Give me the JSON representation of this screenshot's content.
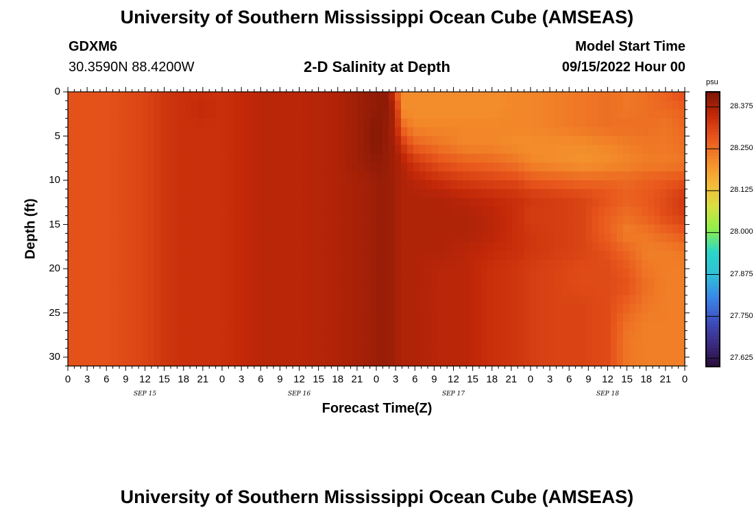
{
  "header": {
    "title": "University of Southern Mississippi Ocean Cube (AMSEAS)",
    "station_id": "GDXM6",
    "station_coords": "30.3590N  88.4200W",
    "subtitle": "2-D Salinity at Depth",
    "model_start_label": "Model Start Time",
    "model_start_value": "09/15/2022 Hour 00"
  },
  "footer": {
    "repeat_title": "University of Southern Mississippi Ocean Cube (AMSEAS)"
  },
  "colors": {
    "scale": [
      "#2a0b3a",
      "#3b2b80",
      "#3e4fc0",
      "#3a86e8",
      "#2fc0d8",
      "#2ad6c8",
      "#8ef04a",
      "#d8e040",
      "#f5b838",
      "#f38a2a",
      "#e8561c",
      "#c32808",
      "#7a1606"
    ]
  },
  "chart_data": {
    "type": "heatmap",
    "title": "2-D Salinity at Depth",
    "xlabel": "Forecast Time(Z)",
    "ylabel": "Depth (ft)",
    "x_unit": "hours from 09/15/2022 00Z",
    "xlim": [
      0,
      96
    ],
    "ylim": [
      0,
      31
    ],
    "y_inverted": true,
    "x_tick_labels": [
      "0",
      "3",
      "6",
      "9",
      "12",
      "15",
      "18",
      "21",
      "0",
      "3",
      "6",
      "9",
      "12",
      "15",
      "18",
      "21",
      "0",
      "3",
      "6",
      "9",
      "12",
      "15",
      "18",
      "21",
      "0",
      "3",
      "6",
      "9",
      "12",
      "15",
      "18",
      "21",
      "0"
    ],
    "x_tick_values": [
      0,
      3,
      6,
      9,
      12,
      15,
      18,
      21,
      24,
      27,
      30,
      33,
      36,
      39,
      42,
      45,
      48,
      51,
      54,
      57,
      60,
      63,
      66,
      69,
      72,
      75,
      78,
      81,
      84,
      87,
      90,
      93,
      96
    ],
    "date_labels": [
      {
        "label": "SEP 15",
        "x": 12
      },
      {
        "label": "SEP 16",
        "x": 36
      },
      {
        "label": "SEP 17",
        "x": 60
      },
      {
        "label": "SEP 18",
        "x": 84
      }
    ],
    "y_tick_labels": [
      "0",
      "5",
      "10",
      "15",
      "20",
      "25",
      "30"
    ],
    "y_tick_values": [
      0,
      5,
      10,
      15,
      20,
      25,
      30
    ],
    "colorbar": {
      "unit": "psu",
      "min": 27.6,
      "max": 28.42,
      "tick_labels": [
        "28.375",
        "28.250",
        "28.125",
        "28.000",
        "27.875",
        "27.750",
        "27.625"
      ],
      "tick_values": [
        28.375,
        28.25,
        28.125,
        28.0,
        27.875,
        27.75,
        27.625
      ]
    },
    "x_hours": [
      0,
      6,
      12,
      15,
      18,
      21,
      24,
      30,
      36,
      42,
      46,
      48,
      50,
      51,
      52,
      54,
      58,
      62,
      66,
      70,
      72,
      76,
      80,
      84,
      87,
      90,
      93,
      96
    ],
    "depths": [
      0,
      2,
      4,
      6,
      8,
      10,
      12,
      14,
      16,
      18,
      20,
      22,
      24,
      26,
      28,
      30
    ],
    "values": [
      [
        28.29,
        28.29,
        28.31,
        28.33,
        28.34,
        28.34,
        28.34,
        28.36,
        28.36,
        28.37,
        28.39,
        28.4,
        28.4,
        28.3,
        28.21,
        28.21,
        28.21,
        28.21,
        28.21,
        28.22,
        28.22,
        28.23,
        28.24,
        28.25,
        28.24,
        28.25,
        28.27,
        28.3
      ],
      [
        28.29,
        28.29,
        28.31,
        28.33,
        28.34,
        28.35,
        28.34,
        28.36,
        28.36,
        28.37,
        28.39,
        28.4,
        28.4,
        28.36,
        28.21,
        28.21,
        28.21,
        28.21,
        28.21,
        28.22,
        28.22,
        28.23,
        28.24,
        28.25,
        28.24,
        28.25,
        28.26,
        28.27
      ],
      [
        28.29,
        28.29,
        28.31,
        28.33,
        28.34,
        28.34,
        28.34,
        28.36,
        28.36,
        28.37,
        28.39,
        28.41,
        28.39,
        28.37,
        28.26,
        28.22,
        28.22,
        28.22,
        28.22,
        28.22,
        28.22,
        28.23,
        28.24,
        28.25,
        28.25,
        28.25,
        28.24,
        28.26
      ],
      [
        28.29,
        28.29,
        28.31,
        28.33,
        28.34,
        28.34,
        28.34,
        28.36,
        28.36,
        28.37,
        28.39,
        28.41,
        28.39,
        28.38,
        28.33,
        28.27,
        28.24,
        28.22,
        28.22,
        28.21,
        28.21,
        28.21,
        28.21,
        28.22,
        28.23,
        28.24,
        28.24,
        28.25
      ],
      [
        28.29,
        28.29,
        28.31,
        28.33,
        28.34,
        28.34,
        28.34,
        28.36,
        28.36,
        28.37,
        28.39,
        28.4,
        28.39,
        28.38,
        28.37,
        28.33,
        28.29,
        28.27,
        28.26,
        28.24,
        28.22,
        28.21,
        28.2,
        28.21,
        28.22,
        28.23,
        28.23,
        28.24
      ],
      [
        28.29,
        28.29,
        28.31,
        28.33,
        28.34,
        28.34,
        28.34,
        28.36,
        28.36,
        28.37,
        28.38,
        28.39,
        28.39,
        28.38,
        28.37,
        28.36,
        28.34,
        28.32,
        28.31,
        28.3,
        28.28,
        28.27,
        28.26,
        28.26,
        28.26,
        28.27,
        28.28,
        28.29
      ],
      [
        28.29,
        28.29,
        28.31,
        28.33,
        28.34,
        28.34,
        28.34,
        28.36,
        28.36,
        28.37,
        28.38,
        28.39,
        28.39,
        28.38,
        28.37,
        28.37,
        28.37,
        28.36,
        28.35,
        28.34,
        28.33,
        28.32,
        28.31,
        28.29,
        28.27,
        28.28,
        28.3,
        28.33
      ],
      [
        28.29,
        28.29,
        28.31,
        28.33,
        28.34,
        28.34,
        28.34,
        28.36,
        28.36,
        28.37,
        28.38,
        28.39,
        28.39,
        28.38,
        28.37,
        28.37,
        28.37,
        28.37,
        28.36,
        28.34,
        28.32,
        28.32,
        28.31,
        28.27,
        28.25,
        28.27,
        28.3,
        28.32
      ],
      [
        28.29,
        28.29,
        28.31,
        28.33,
        28.34,
        28.34,
        28.34,
        28.36,
        28.36,
        28.37,
        28.38,
        28.39,
        28.39,
        28.38,
        28.37,
        28.37,
        28.37,
        28.37,
        28.36,
        28.34,
        28.33,
        28.32,
        28.31,
        28.27,
        28.23,
        28.24,
        28.26,
        28.28
      ],
      [
        28.29,
        28.29,
        28.31,
        28.33,
        28.34,
        28.34,
        28.34,
        28.36,
        28.36,
        28.37,
        28.38,
        28.39,
        28.39,
        28.38,
        28.37,
        28.37,
        28.37,
        28.36,
        28.35,
        28.34,
        28.33,
        28.32,
        28.31,
        28.29,
        28.26,
        28.23,
        28.23,
        28.24
      ],
      [
        28.29,
        28.29,
        28.31,
        28.33,
        28.34,
        28.34,
        28.34,
        28.36,
        28.36,
        28.37,
        28.38,
        28.39,
        28.39,
        28.38,
        28.37,
        28.37,
        28.36,
        28.36,
        28.34,
        28.33,
        28.32,
        28.31,
        28.3,
        28.3,
        28.28,
        28.24,
        28.23,
        28.23
      ],
      [
        28.29,
        28.29,
        28.31,
        28.33,
        28.34,
        28.34,
        28.34,
        28.36,
        28.36,
        28.37,
        28.38,
        28.39,
        28.39,
        28.38,
        28.37,
        28.37,
        28.36,
        28.36,
        28.34,
        28.33,
        28.32,
        28.31,
        28.3,
        28.3,
        28.29,
        28.25,
        28.23,
        28.23
      ],
      [
        28.29,
        28.29,
        28.31,
        28.33,
        28.34,
        28.34,
        28.34,
        28.36,
        28.36,
        28.37,
        28.38,
        28.39,
        28.39,
        28.38,
        28.37,
        28.37,
        28.36,
        28.36,
        28.34,
        28.33,
        28.32,
        28.31,
        28.31,
        28.3,
        28.27,
        28.24,
        28.23,
        28.23
      ],
      [
        28.29,
        28.29,
        28.31,
        28.33,
        28.34,
        28.34,
        28.34,
        28.36,
        28.36,
        28.37,
        28.38,
        28.39,
        28.39,
        28.38,
        28.37,
        28.37,
        28.36,
        28.36,
        28.34,
        28.33,
        28.32,
        28.31,
        28.31,
        28.3,
        28.25,
        28.23,
        28.23,
        28.23
      ],
      [
        28.29,
        28.29,
        28.31,
        28.33,
        28.34,
        28.34,
        28.34,
        28.36,
        28.36,
        28.37,
        28.38,
        28.39,
        28.39,
        28.38,
        28.37,
        28.37,
        28.36,
        28.36,
        28.34,
        28.33,
        28.32,
        28.31,
        28.31,
        28.3,
        28.24,
        28.23,
        28.23,
        28.23
      ],
      [
        28.29,
        28.29,
        28.31,
        28.33,
        28.34,
        28.34,
        28.34,
        28.36,
        28.36,
        28.37,
        28.38,
        28.39,
        28.39,
        28.38,
        28.37,
        28.37,
        28.36,
        28.36,
        28.34,
        28.33,
        28.32,
        28.31,
        28.31,
        28.3,
        28.24,
        28.23,
        28.23,
        28.23
      ]
    ]
  }
}
